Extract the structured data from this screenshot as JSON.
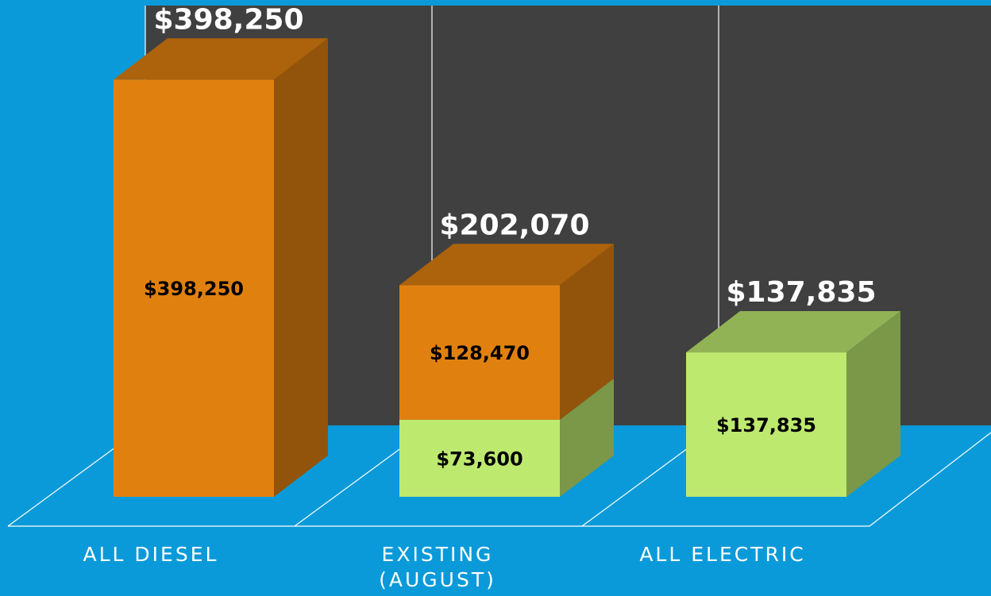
{
  "chart_data": {
    "type": "bar",
    "stacked": true,
    "categories": [
      "ALL DIESEL",
      "EXISTING (AUGUST)",
      "ALL ELECTRIC"
    ],
    "series": [
      {
        "color": "#bde96f",
        "values": [
          null,
          73600,
          137835
        ],
        "value_labels": [
          null,
          "$73,600",
          "$137,835"
        ]
      },
      {
        "color": "#e0810f",
        "values": [
          398250,
          128470,
          null
        ],
        "value_labels": [
          "$398,250",
          "$128,470",
          null
        ]
      }
    ],
    "totals": [
      398250,
      202070,
      137835
    ],
    "total_labels": [
      "$398,250",
      "$202,070",
      "$137,835"
    ],
    "ylim": [
      0,
      450000
    ]
  }
}
